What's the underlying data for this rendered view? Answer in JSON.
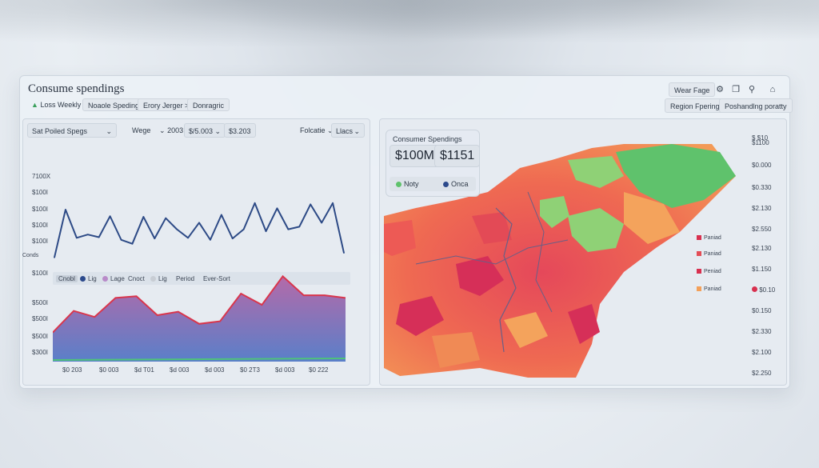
{
  "app": {
    "title": "Consume spendings",
    "filters": [
      "Loss Weekly",
      "Noaole Speding",
      "Erory Jerger >",
      "Donragric"
    ],
    "right_buttons": [
      "Wear Fage",
      "Region Fpering",
      "Poshandlng poratty"
    ],
    "icons": [
      "filter-icon",
      "copy-icon",
      "search-icon",
      "home-icon"
    ]
  },
  "left_panel": {
    "period_select": "Sat Poiled Spegs",
    "wege_label": "Wege",
    "chips": [
      "2003",
      "$/5.003",
      "$3.203"
    ],
    "right_label": "Folcatie",
    "right_select": "Llacs",
    "y_labels_top": [
      "7100X",
      "$100I",
      "$100I",
      "$100I",
      "$100I"
    ],
    "y_labels_bottom": [
      "$500I",
      "$500I",
      "$500I",
      "$300I"
    ],
    "y_axis_title": "Conds",
    "legend": [
      {
        "label": "Cnobl",
        "color": "#c8d0da"
      },
      {
        "label": "Lig",
        "color": "#2c4a8c"
      },
      {
        "label": "Lage",
        "color": "#b98bc9"
      },
      {
        "label": "Cnoct",
        "color": "#dfe4ea"
      },
      {
        "label": "Lig",
        "color": "#c8cdd4"
      },
      {
        "label": "Period",
        "color": ""
      },
      {
        "label": "Ever-Sort",
        "color": ""
      }
    ],
    "x_labels": [
      "$0 203",
      "$0 003",
      "$d T01",
      "$d 003",
      "$d 003",
      "$0 2T3",
      "$d 003",
      "$0 222"
    ],
    "colors": {
      "line": "#2d4a86",
      "area_top": "#d9364c",
      "area_fill_top": "#b46aa9",
      "area_fill_bottom": "#5a7fc9",
      "baseline": "#4fc27a"
    }
  },
  "chart_data": [
    {
      "type": "line",
      "title": "",
      "x": [
        1,
        2,
        3,
        4,
        5,
        6,
        7,
        8,
        9,
        10,
        11,
        12,
        13,
        14,
        15,
        16,
        17,
        18,
        19,
        20,
        21,
        22,
        23,
        24,
        25,
        26,
        27
      ],
      "series": [
        {
          "name": "",
          "values": [
            0.05,
            0.78,
            0.35,
            0.4,
            0.36,
            0.68,
            0.32,
            0.26,
            0.67,
            0.34,
            0.65,
            0.48,
            0.35,
            0.58,
            0.32,
            0.7,
            0.34,
            0.48,
            0.88,
            0.45,
            0.8,
            0.48,
            0.52,
            0.86,
            0.58,
            0.88,
            0.12
          ]
        }
      ],
      "ylim": [
        0,
        1
      ]
    },
    {
      "type": "area",
      "title": "",
      "x": [
        1,
        2,
        3,
        4,
        5,
        6,
        7,
        8,
        9,
        10,
        11,
        12,
        13,
        14,
        15
      ],
      "series": [
        {
          "name": "",
          "values": [
            0.3,
            0.55,
            0.48,
            0.7,
            0.72,
            0.5,
            0.54,
            0.4,
            0.43,
            0.75,
            0.62,
            0.95,
            0.73,
            0.73,
            0.7
          ]
        }
      ],
      "ylim": [
        0,
        1
      ]
    }
  ],
  "map_panel": {
    "card_title": "Consumer Spendings",
    "value_1": "$100M",
    "value_2": "$1151",
    "legend_1": "Noty",
    "legend_2": "Onca",
    "right_labels": [
      "$ $10",
      "$1100",
      "$0.000",
      "$0.330",
      "$2.130",
      "$2.550",
      "$2.130",
      "$1.150",
      "$0.10",
      "$0.150",
      "$2.330",
      "$2.100",
      "$2.330",
      "$2.250"
    ],
    "map_legend": [
      {
        "label": "Paniad",
        "color": "#d8304f"
      },
      {
        "label": "Paniad",
        "color": "#e34d56"
      },
      {
        "label": "Peniad",
        "color": "#d8304f"
      },
      {
        "label": "Paniad",
        "color": "#f3a05a"
      }
    ]
  }
}
